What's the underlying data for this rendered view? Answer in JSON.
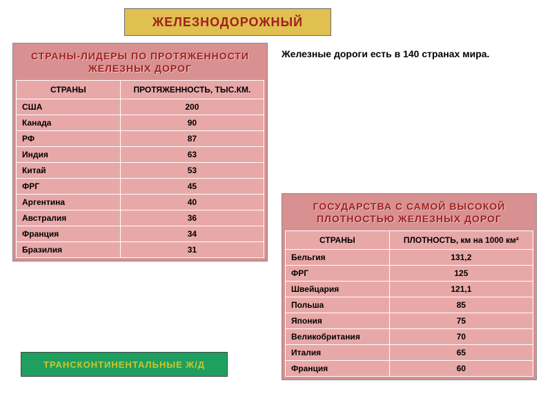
{
  "title": "ЖЕЛЕЗНОДОРОЖНЫЙ",
  "subtitle": "Железные дороги есть в 140 странах мира.",
  "link_label": "ТРАНСКОНТИНЕНТАЛЬНЫЕ Ж/Д",
  "colors": {
    "title_bg": "#e0c050",
    "title_text": "#a02020",
    "table_bg": "#d89090",
    "cell_bg": "#e8a8a8",
    "link_bg": "#20a060",
    "link_text": "#c8c830",
    "border": "#ffffff"
  },
  "table_left": {
    "caption_line1": "СТРАНЫ-ЛИДЕРЫ ПО ПРОТЯЖЕННОСТИ",
    "caption_line2": "ЖЕЛЕЗНЫХ ДОРОГ",
    "col1": "СТРАНЫ",
    "col2": "ПРОТЯЖЕННОСТЬ, ТЫС.КМ.",
    "rows": [
      {
        "c": "США",
        "v": "200"
      },
      {
        "c": "Канада",
        "v": "90"
      },
      {
        "c": "РФ",
        "v": "87"
      },
      {
        "c": "Индия",
        "v": "63"
      },
      {
        "c": "Китай",
        "v": "53"
      },
      {
        "c": "ФРГ",
        "v": "45"
      },
      {
        "c": "Аргентина",
        "v": "40"
      },
      {
        "c": "Австралия",
        "v": "36"
      },
      {
        "c": "Франция",
        "v": "34"
      },
      {
        "c": "Бразилия",
        "v": "31"
      }
    ]
  },
  "table_right": {
    "caption_line1": "ГОСУДАРСТВА С САМОЙ ВЫСОКОЙ",
    "caption_line2": "ПЛОТНОСТЬЮ ЖЕЛЕЗНЫХ ДОРОГ",
    "col1": "СТРАНЫ",
    "col2": "ПЛОТНОСТЬ, км на 1000 км²",
    "rows": [
      {
        "c": "Бельгия",
        "v": "131,2"
      },
      {
        "c": "ФРГ",
        "v": "125"
      },
      {
        "c": "Швейцария",
        "v": "121,1"
      },
      {
        "c": "Польша",
        "v": "85"
      },
      {
        "c": "Япония",
        "v": "75"
      },
      {
        "c": "Великобритания",
        "v": "70"
      },
      {
        "c": "Италия",
        "v": "65"
      },
      {
        "c": "Франция",
        "v": "60"
      }
    ]
  }
}
